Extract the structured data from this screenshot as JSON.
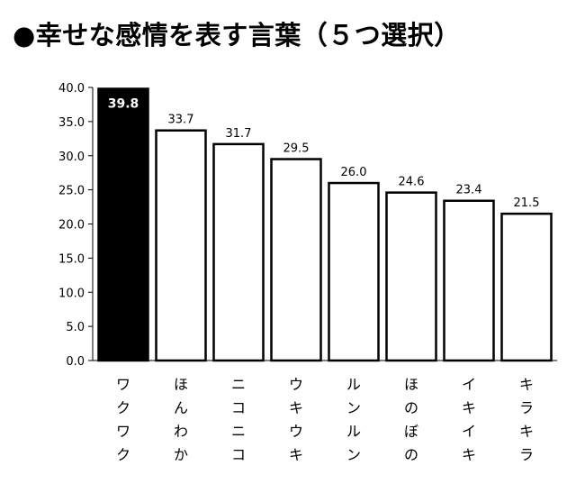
{
  "title": "●幸せな感情を表す言葉（５つ選択）",
  "chart_data": {
    "type": "bar",
    "title": "●幸せな感情を表す言葉（５つ選択）",
    "xlabel": "",
    "ylabel": "",
    "categories": [
      "ワクワク",
      "ほんわか",
      "ニコニコ",
      "ウキウキ",
      "ルンルン",
      "ほのぼの",
      "イキイキ",
      "キラキラ"
    ],
    "values": [
      39.8,
      33.7,
      31.7,
      29.5,
      26.0,
      24.6,
      23.4,
      21.5
    ],
    "value_labels": [
      "39.8",
      "33.7",
      "31.7",
      "29.5",
      "26.0",
      "24.6",
      "23.4",
      "21.5"
    ],
    "ylim": [
      0,
      40
    ],
    "yticks": [
      "0.0",
      "5.0",
      "10.0",
      "15.0",
      "20.0",
      "25.0",
      "30.0",
      "35.0",
      "40.0"
    ],
    "highlight_index": 0,
    "grid": false,
    "colors": {
      "highlight": "#000000",
      "bar_fill": "#ffffff",
      "bar_stroke": "#000000",
      "axis": "#000000"
    }
  }
}
